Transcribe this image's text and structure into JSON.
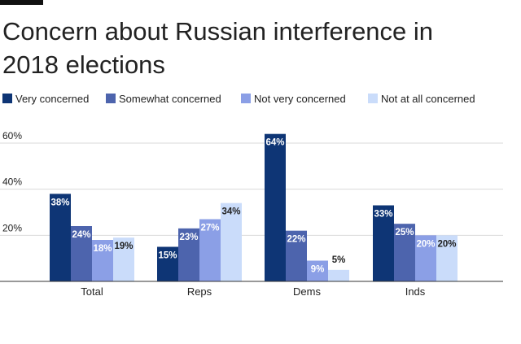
{
  "title": "Concern about Russian interference in 2018 elections",
  "chart_data": {
    "type": "bar",
    "title": "Concern about Russian interference in 2018 elections",
    "xlabel": "",
    "ylabel": "",
    "ylim": [
      0,
      60
    ],
    "yticks": [
      20,
      40,
      60
    ],
    "ytick_labels": [
      "20%",
      "40%",
      "60%"
    ],
    "grid": true,
    "legend_position": "top",
    "categories": [
      "Total",
      "Reps",
      "Dems",
      "Inds"
    ],
    "series": [
      {
        "name": "Very concerned",
        "color": "#0e3575",
        "values": [
          38,
          15,
          64,
          33
        ],
        "labels": [
          "38%",
          "15%",
          "64%",
          "33%"
        ]
      },
      {
        "name": "Somewhat concerned",
        "color": "#4d64ad",
        "values": [
          24,
          23,
          22,
          25
        ],
        "labels": [
          "24%",
          "23%",
          "22%",
          "25%"
        ]
      },
      {
        "name": "Not very concerned",
        "color": "#8b9fe6",
        "values": [
          18,
          27,
          9,
          20
        ],
        "labels": [
          "18%",
          "27%",
          "9%",
          "20%"
        ]
      },
      {
        "name": "Not at all concerned",
        "color": "#cadcfa",
        "values": [
          19,
          34,
          5,
          20
        ],
        "labels": [
          "19%",
          "34%",
          "5%",
          "20%"
        ]
      }
    ]
  }
}
